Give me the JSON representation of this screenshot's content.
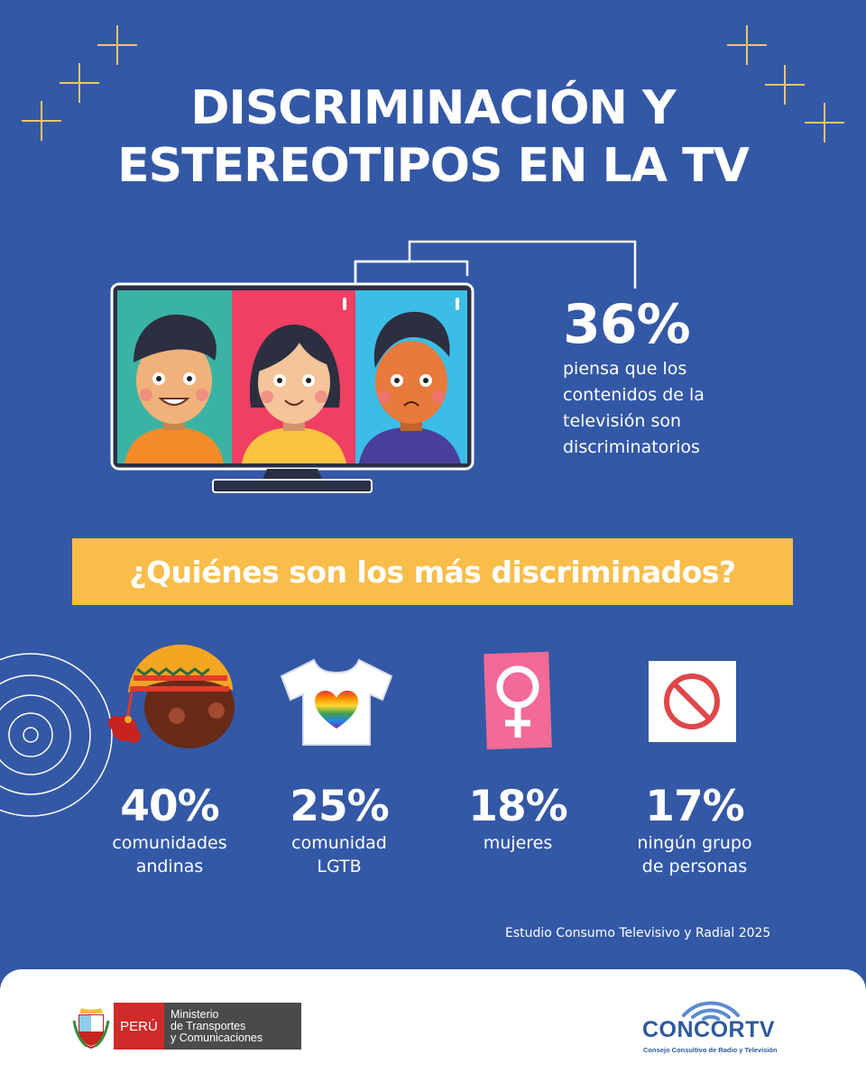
{
  "title": {
    "line1": "DISCRIMINACIÓN Y",
    "line2": "ESTEREOTIPOS EN LA TV"
  },
  "headline_stat": {
    "value": "36%",
    "description": "piensa que los contenidos de la televisión son discriminatorios"
  },
  "banner": {
    "question": "¿Quiénes son los más discriminados?"
  },
  "groups": [
    {
      "value": "40%",
      "label_line1": "comunidades",
      "label_line2": "andinas",
      "icon": "andean-person-icon"
    },
    {
      "value": "25%",
      "label_line1": "comunidad",
      "label_line2": "LGTB",
      "icon": "rainbow-heart-tshirt-icon"
    },
    {
      "value": "18%",
      "label_line1": "mujeres",
      "label_line2": "",
      "icon": "female-symbol-icon"
    },
    {
      "value": "17%",
      "label_line1": "ningún grupo",
      "label_line2": "de personas",
      "icon": "prohibited-icon"
    }
  ],
  "source": "Estudio Consumo Televisivo y Radial 2025",
  "footer": {
    "country": "PERÚ",
    "ministry_line1": "Ministerio",
    "ministry_line2": "de Transportes",
    "ministry_line3": "y Comunicaciones",
    "brand": "CONCORTV",
    "brand_sub": "Consejo Consultivo de Radio y Televisión"
  },
  "colors": {
    "background": "#3358a6",
    "banner": "#f9bd4a",
    "sparkle": "#f2c46a",
    "brand_blue": "#2b5a9e",
    "peru_red": "#d12a2a",
    "female_pink": "#f26a95",
    "prohibited_red": "#e0464a"
  }
}
